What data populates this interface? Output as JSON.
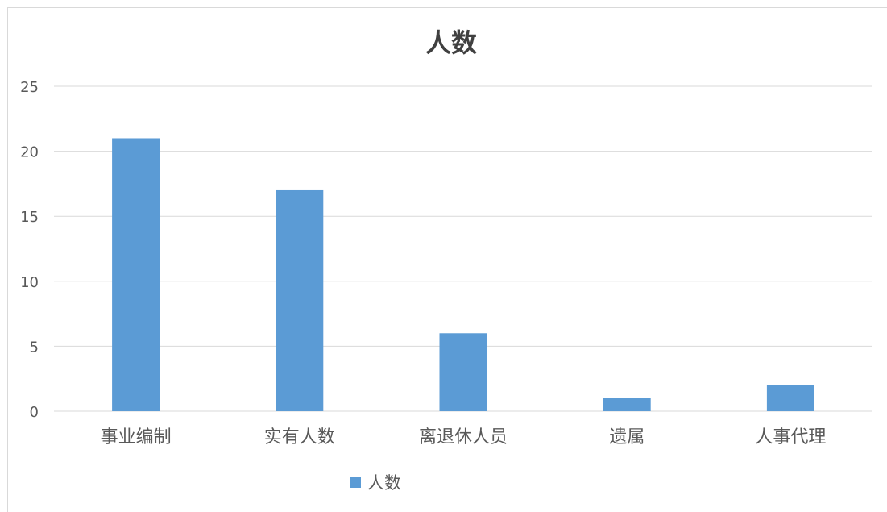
{
  "chart_data": {
    "type": "bar",
    "title": "人数",
    "categories": [
      "事业编制",
      "实有人数",
      "离退休人员",
      "遗属",
      "人事代理"
    ],
    "series": [
      {
        "name": "人数",
        "values": [
          21,
          17,
          6,
          1,
          2
        ],
        "color": "#5b9bd5"
      }
    ],
    "ylim": [
      0,
      25
    ],
    "yticks": [
      0,
      5,
      10,
      15,
      20,
      25
    ],
    "grid": true,
    "gridColor": "#d9d9d9",
    "legend": "bottom-center"
  }
}
